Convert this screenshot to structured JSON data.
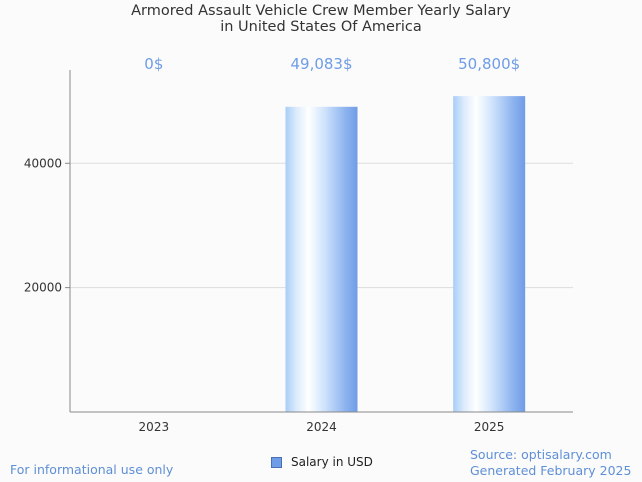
{
  "chart_data": {
    "type": "bar",
    "title_line1": "Armored Assault Vehicle Crew Member Yearly Salary",
    "title_line2": "in United States Of America",
    "categories": [
      "2023",
      "2024",
      "2025"
    ],
    "series": [
      {
        "name": "Salary in USD",
        "values": [
          0,
          49083,
          50800
        ],
        "data_labels": [
          "0$",
          "49,083$",
          "50,800$"
        ]
      }
    ],
    "yticks": [
      20000,
      40000
    ],
    "ytick_labels": [
      "20000",
      "40000"
    ],
    "ylim": [
      0,
      55000
    ],
    "grid": true,
    "legend_position": "bottom-center",
    "colors": {
      "bar_edge": "#6f9ce6",
      "bar_center": "#ffffff",
      "bar_light": "#cde2fb",
      "data_label": "#6f9ce6",
      "gridline": "#dddddd",
      "axis": "#888888"
    }
  },
  "footer": {
    "disclaimer": "For informational use only",
    "source": "Source: optisalary.com",
    "generated": "Generated February 2025"
  }
}
